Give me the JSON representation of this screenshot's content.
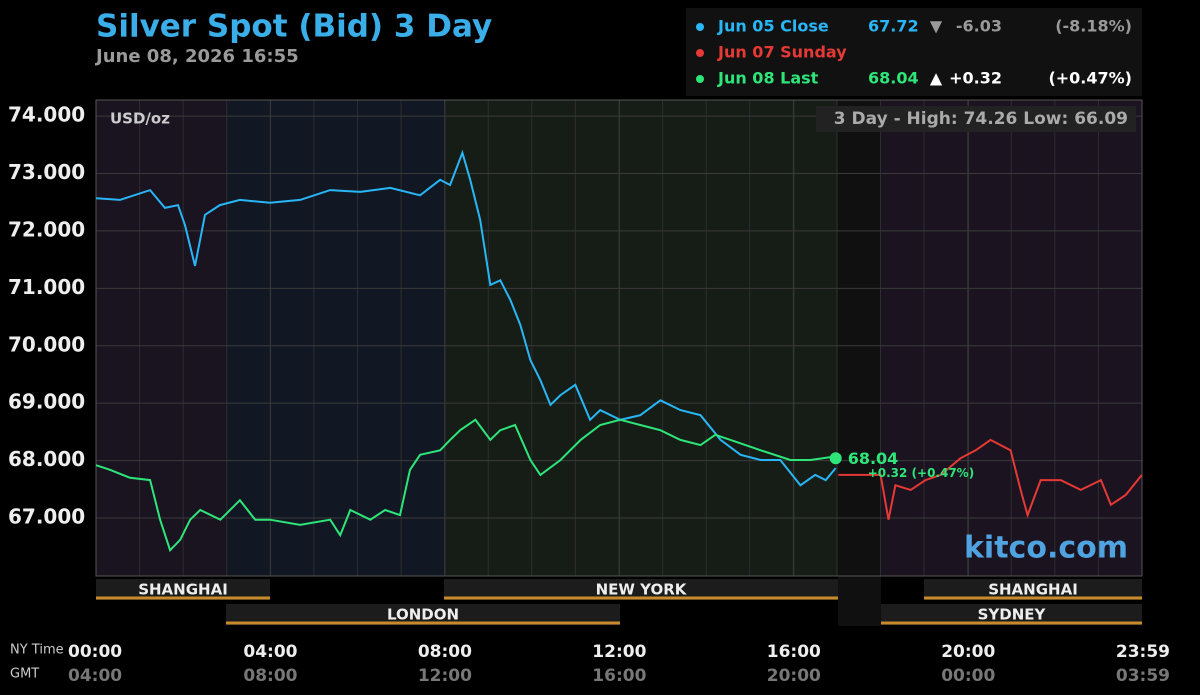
{
  "chart_data": {
    "type": "line",
    "title": "Silver Spot (Bid) 3 Day",
    "subtitle": "June 08, 2026 16:55",
    "unit_label": "USD/oz",
    "range_note": "3 Day - High: 74.26  Low: 66.09",
    "watermark": "kitco.com",
    "xlim": [
      0,
      23.983
    ],
    "ylim": [
      65.99,
      74.28
    ],
    "yticks": [
      {
        "value": 67,
        "label": "67.000"
      },
      {
        "value": 68,
        "label": "68.000"
      },
      {
        "value": 69,
        "label": "69.000"
      },
      {
        "value": 70,
        "label": "70.000"
      },
      {
        "value": 71,
        "label": "71.000"
      },
      {
        "value": 72,
        "label": "72.000"
      },
      {
        "value": 73,
        "label": "73.000"
      },
      {
        "value": 74,
        "label": "74.000"
      }
    ],
    "xticks": [
      {
        "value": 0,
        "label": "00:00"
      },
      {
        "value": 4,
        "label": "04:00"
      },
      {
        "value": 8,
        "label": "08:00"
      },
      {
        "value": 12,
        "label": "12:00"
      },
      {
        "value": 16,
        "label": "16:00"
      },
      {
        "value": 20,
        "label": "20:00"
      },
      {
        "value": 23.983,
        "label": "23:59"
      }
    ],
    "x_axis_label": "NY Time",
    "x2_axis_label": "GMT",
    "gmt_ticklabels": [
      "04:00",
      "08:00",
      "12:00",
      "16:00",
      "20:00",
      "00:00",
      "03:59"
    ],
    "sessions": [
      "SHANGHAI",
      "NEW YORK",
      "SHANGHAI",
      "LONDON",
      "SYDNEY"
    ],
    "series": [
      {
        "name": "Jun 05 Close",
        "color": "#29b6f6",
        "stats": [
          "67.72",
          "▼",
          "-6.03",
          "(-8.18%)"
        ],
        "x": [
          0,
          0.55,
          1.24,
          1.58,
          1.88,
          2.04,
          2.27,
          2.5,
          2.84,
          3.3,
          3.99,
          4.68,
          5.37,
          6.06,
          6.75,
          7.43,
          7.89,
          8.12,
          8.4,
          8.58,
          8.81,
          9.04,
          9.27,
          9.5,
          9.73,
          9.96,
          10.19,
          10.42,
          10.65,
          10.99,
          11.33,
          11.56,
          12.02,
          12.48,
          12.94,
          13.4,
          13.86,
          14.32,
          14.78,
          15.24,
          15.69,
          16.15,
          16.49,
          16.73,
          16.96
        ],
        "values": [
          72.57,
          72.54,
          72.71,
          72.4,
          72.45,
          72.1,
          71.39,
          72.28,
          72.45,
          72.54,
          72.49,
          72.54,
          72.71,
          72.68,
          72.75,
          72.62,
          72.89,
          72.8,
          73.36,
          72.89,
          72.19,
          71.06,
          71.14,
          70.8,
          70.36,
          69.75,
          69.4,
          68.97,
          69.14,
          69.32,
          68.71,
          68.88,
          68.71,
          68.79,
          69.05,
          68.88,
          68.79,
          68.36,
          68.1,
          68.01,
          68.01,
          67.57,
          67.75,
          67.66,
          67.87
        ]
      },
      {
        "name": "Jun 07 Sunday",
        "color": "#e53935",
        "stats": [],
        "x": [
          17.02,
          17.99,
          18.17,
          18.33,
          18.68,
          19.02,
          19.37,
          19.82,
          20.17,
          20.51,
          20.97,
          21.2,
          21.36,
          21.66,
          22.12,
          22.58,
          23.04,
          23.27,
          23.61,
          23.98
        ],
        "values": [
          67.75,
          67.75,
          66.97,
          67.57,
          67.49,
          67.66,
          67.75,
          68.04,
          68.18,
          68.36,
          68.18,
          67.49,
          67.05,
          67.66,
          67.66,
          67.49,
          67.66,
          67.23,
          67.4,
          67.75
        ]
      },
      {
        "name": "Jun 08 Last",
        "color": "#2ee57a",
        "stats": [
          "68.04",
          "▲",
          "+0.32",
          "(+0.47%)"
        ],
        "x": [
          0,
          0.32,
          0.78,
          1.24,
          1.47,
          1.7,
          1.93,
          2.16,
          2.39,
          2.85,
          3.3,
          3.65,
          3.99,
          4.68,
          5.37,
          5.6,
          5.83,
          6.29,
          6.63,
          6.97,
          7.2,
          7.43,
          7.89,
          8.12,
          8.35,
          8.7,
          9.04,
          9.27,
          9.61,
          9.96,
          10.19,
          10.65,
          11.11,
          11.56,
          12.02,
          12.48,
          12.94,
          13.4,
          13.86,
          14.2,
          14.55,
          15.24,
          15.92,
          16.38,
          16.84,
          16.96
        ],
        "values": [
          67.92,
          67.84,
          67.7,
          67.66,
          66.97,
          66.44,
          66.62,
          66.97,
          67.14,
          66.97,
          67.31,
          66.97,
          66.97,
          66.88,
          66.97,
          66.7,
          67.14,
          66.97,
          67.14,
          67.05,
          67.84,
          68.1,
          68.18,
          68.36,
          68.53,
          68.71,
          68.36,
          68.53,
          68.62,
          68.01,
          67.75,
          68.01,
          68.36,
          68.62,
          68.71,
          68.62,
          68.53,
          68.36,
          68.27,
          68.45,
          68.36,
          68.18,
          68.01,
          68.01,
          68.06,
          68.04
        ],
        "last_label": "68.04",
        "last_change": "+0.32 (+0.47%)"
      }
    ]
  }
}
